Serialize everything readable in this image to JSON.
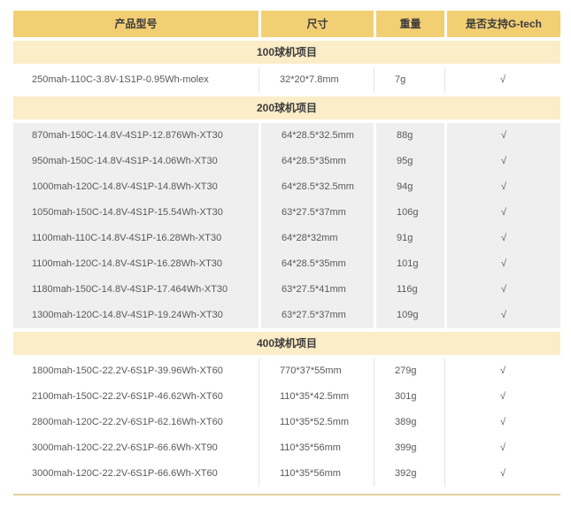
{
  "table": {
    "columns": [
      {
        "label": "产品型号"
      },
      {
        "label": "尺寸"
      },
      {
        "label": "重量"
      },
      {
        "label": "是否支持G-tech"
      }
    ],
    "check_glyph": "√",
    "colors": {
      "header_bg": "#F3CF74",
      "section_bg": "#FAEDC7",
      "gray_row_bg": "#EFEFEF",
      "bottom_rule": "#E3D0A0",
      "header_text": "#3C3C3C",
      "body_text": "#58595B"
    },
    "sections": [
      {
        "title": "100球机项目",
        "row_style": "white",
        "rows": [
          {
            "model": "250mah-110C-3.8V-1S1P-0.95Wh-molex",
            "size": "32*20*7.8mm",
            "weight": "7g",
            "gtech": "√"
          }
        ]
      },
      {
        "title": "200球机项目",
        "row_style": "gray",
        "rows": [
          {
            "model": "870mah-150C-14.8V-4S1P-12.876Wh-XT30",
            "size": "64*28.5*32.5mm",
            "weight": "88g",
            "gtech": "√"
          },
          {
            "model": "950mah-150C-14.8V-4S1P-14.06Wh-XT30",
            "size": "64*28.5*35mm",
            "weight": "95g",
            "gtech": "√"
          },
          {
            "model": "1000mah-120C-14.8V-4S1P-14.8Wh-XT30",
            "size": "64*28.5*32.5mm",
            "weight": "94g",
            "gtech": "√"
          },
          {
            "model": "1050mah-150C-14.8V-4S1P-15.54Wh-XT30",
            "size": "63*27.5*37mm",
            "weight": "106g",
            "gtech": "√"
          },
          {
            "model": "1100mah-110C-14.8V-4S1P-16.28Wh-XT30",
            "size": "64*28*32mm",
            "weight": "91g",
            "gtech": "√"
          },
          {
            "model": "1100mah-120C-14.8V-4S1P-16.28Wh-XT30",
            "size": "64*28.5*35mm",
            "weight": "101g",
            "gtech": "√"
          },
          {
            "model": "1180mah-150C-14.8V-4S1P-17.464Wh-XT30",
            "size": "63*27.5*41mm",
            "weight": "116g",
            "gtech": "√"
          },
          {
            "model": "1300mah-120C-14.8V-4S1P-19.24Wh-XT30",
            "size": "63*27.5*37mm",
            "weight": "109g",
            "gtech": "√"
          }
        ]
      },
      {
        "title": "400球机项目",
        "row_style": "white",
        "rows": [
          {
            "model": "1800mah-150C-22.2V-6S1P-39.96Wh-XT60",
            "size": "770*37*55mm",
            "weight": "279g",
            "gtech": "√"
          },
          {
            "model": "2100mah-150C-22.2V-6S1P-46.62Wh-XT60",
            "size": "110*35*42.5mm",
            "weight": "301g",
            "gtech": "√"
          },
          {
            "model": "2800mah-120C-22.2V-6S1P-62.16Wh-XT60",
            "size": "110*35*52.5mm",
            "weight": "389g",
            "gtech": "√"
          },
          {
            "model": "3000mah-120C-22.2V-6S1P-66.6Wh-XT90",
            "size": "110*35*56mm",
            "weight": "399g",
            "gtech": "√"
          },
          {
            "model": "3000mah-120C-22.2V-6S1P-66.6Wh-XT60",
            "size": "110*35*56mm",
            "weight": "392g",
            "gtech": "√"
          }
        ]
      }
    ]
  }
}
